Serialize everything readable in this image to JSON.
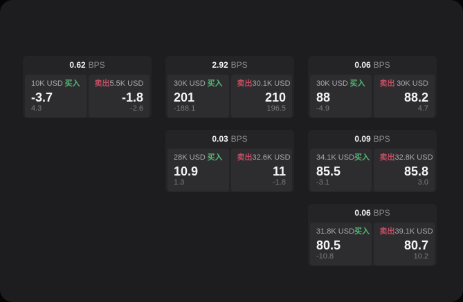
{
  "labels": {
    "bps_unit": "BPS",
    "buy": "买入",
    "sell": "卖出"
  },
  "colors": {
    "buy_green": "#55b874",
    "sell_red": "#bf4d61",
    "window_background": "#1d1d1f",
    "card_background": "#242427",
    "panel_background": "#2d2d30"
  },
  "cards": [
    {
      "bps": "0.62",
      "grid": {
        "row": 1,
        "col": 1
      },
      "buy": {
        "size": "10K USD",
        "price": "-3.7",
        "change": "4.3"
      },
      "sell": {
        "size": "5.5K USD",
        "price": "-1.8",
        "change": "-2.6"
      }
    },
    {
      "bps": "2.92",
      "grid": {
        "row": 1,
        "col": 2
      },
      "buy": {
        "size": "30K USD",
        "price": "201",
        "change": "-188.1"
      },
      "sell": {
        "size": "30.1K USD",
        "price": "210",
        "change": "196.5"
      }
    },
    {
      "bps": "0.06",
      "grid": {
        "row": 1,
        "col": 3
      },
      "buy": {
        "size": "30K USD",
        "price": "88",
        "change": "-4.9"
      },
      "sell": {
        "size": "30K USD",
        "price": "88.2",
        "change": "4.7"
      }
    },
    {
      "bps": "0.03",
      "grid": {
        "row": 2,
        "col": 2
      },
      "buy": {
        "size": "28K USD",
        "price": "10.9",
        "change": "1.3"
      },
      "sell": {
        "size": "32.6K USD",
        "price": "11",
        "change": "-1.8"
      }
    },
    {
      "bps": "0.09",
      "grid": {
        "row": 2,
        "col": 3
      },
      "buy": {
        "size": "34.1K USD",
        "price": "85.5",
        "change": "-3.1"
      },
      "sell": {
        "size": "32.8K USD",
        "price": "85.8",
        "change": "3.0"
      }
    },
    {
      "bps": "0.06",
      "grid": {
        "row": 3,
        "col": 3
      },
      "buy": {
        "size": "31.8K USD",
        "price": "80.5",
        "change": "-10.8"
      },
      "sell": {
        "size": "39.1K USD",
        "price": "80.7",
        "change": "10.2"
      }
    }
  ]
}
